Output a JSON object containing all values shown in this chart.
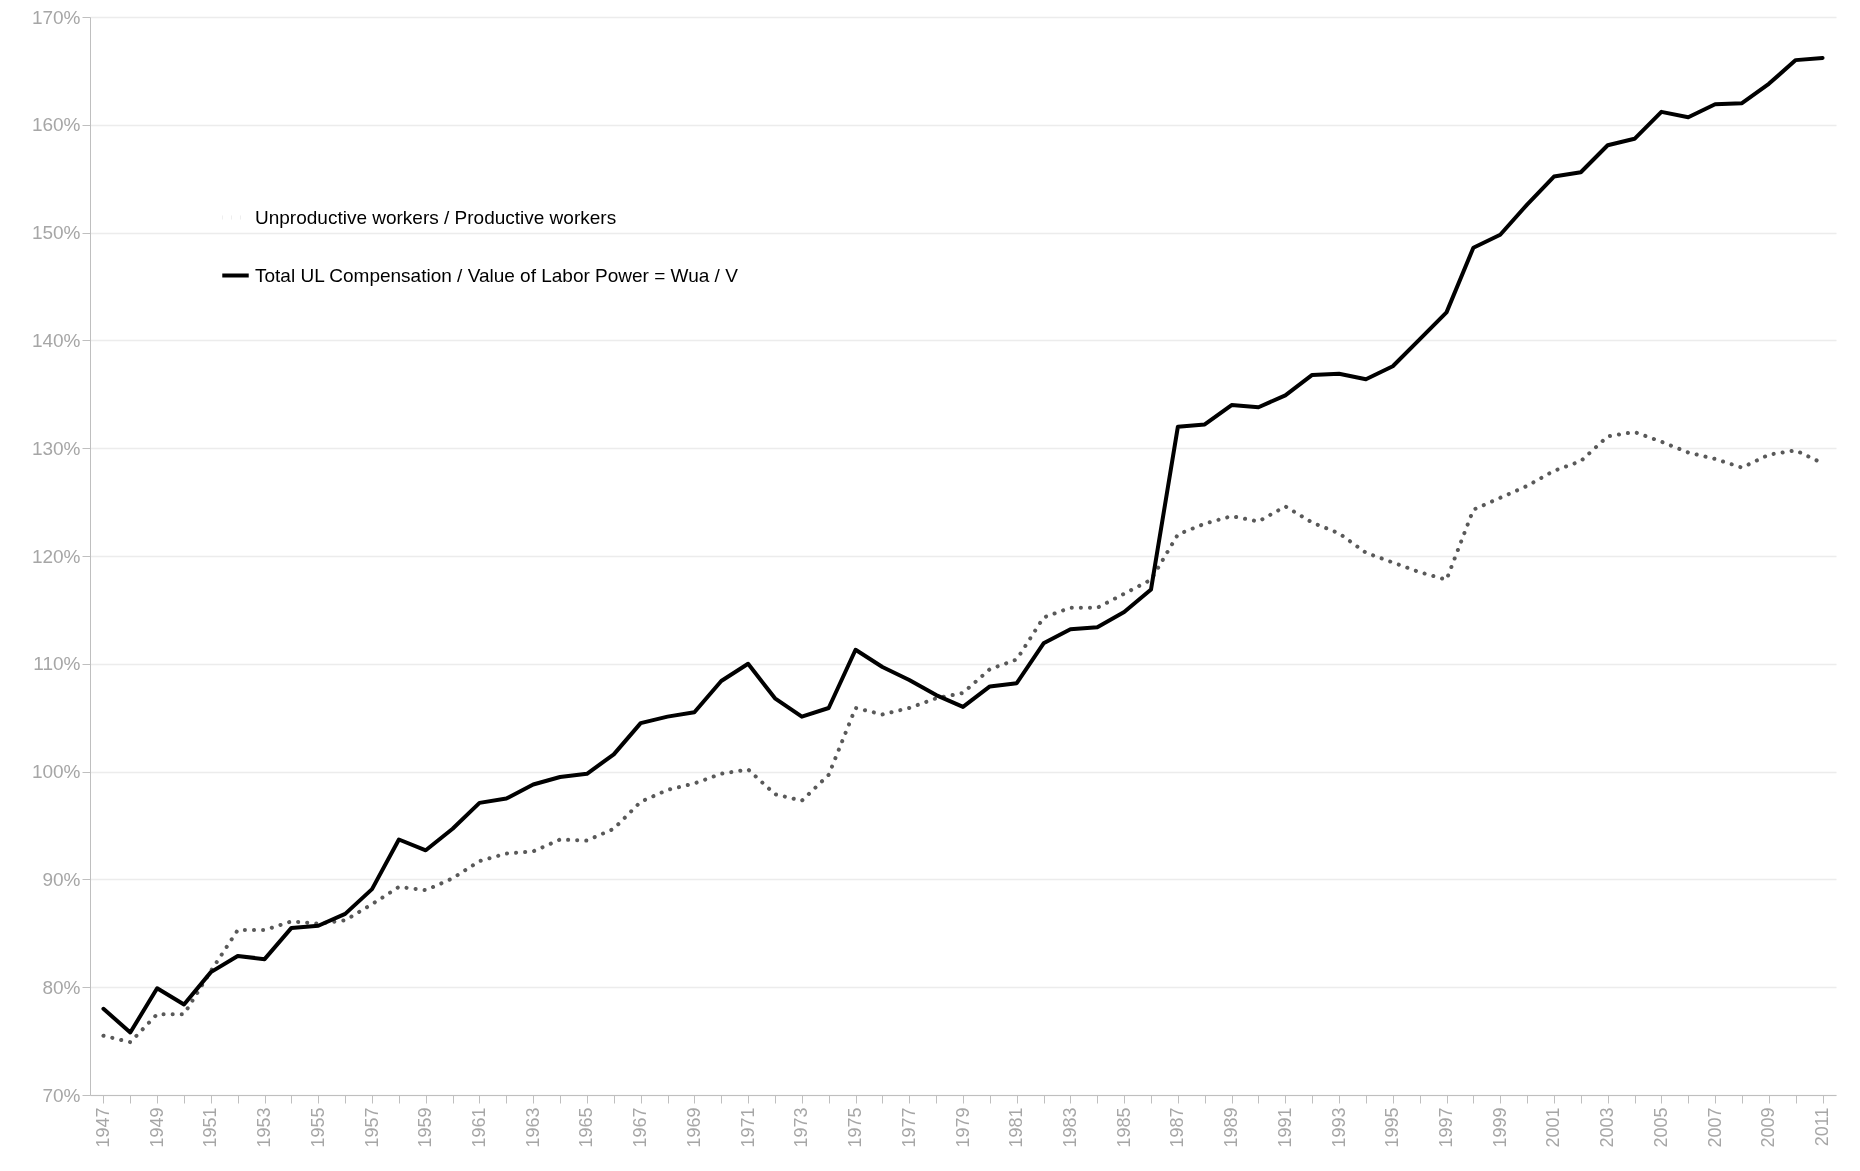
{
  "chart_data": {
    "type": "line",
    "categories": [
      "1947",
      null,
      "1949",
      null,
      "1951",
      null,
      "1953",
      null,
      "1955",
      null,
      "1957",
      null,
      "1959",
      null,
      "1961",
      null,
      "1963",
      null,
      "1965",
      null,
      "1967",
      null,
      "1969",
      null,
      "1971",
      null,
      "1973",
      null,
      "1975",
      null,
      "1977",
      null,
      "1979",
      null,
      "1981",
      null,
      "1983",
      null,
      "1985",
      null,
      "1987",
      null,
      "1989",
      null,
      "1991",
      null,
      "1993",
      null,
      "1995",
      null,
      "1997",
      null,
      "1999",
      null,
      "2001",
      null,
      "2003",
      null,
      "2005",
      null,
      "2007",
      null,
      "2009",
      null,
      "2011"
    ],
    "series": [
      {
        "name": "Unproductive workers / Productive workers",
        "color": "#595959",
        "line_style": "dotted",
        "values": [
          75.5,
          74.9,
          77.5,
          77.5,
          81.5,
          85.3,
          85.3,
          86.1,
          85.9,
          86.2,
          87.7,
          89.3,
          89.0,
          90.1,
          91.7,
          92.4,
          92.6,
          93.7,
          93.6,
          94.7,
          97.2,
          98.3,
          98.9,
          99.8,
          100.2,
          97.9,
          97.3,
          99.7,
          105.9,
          105.3,
          105.9,
          106.8,
          107.3,
          109.5,
          110.4,
          114.3,
          115.2,
          115.2,
          116.5,
          117.8,
          122.0,
          123.0,
          123.7,
          123.2,
          124.6,
          123.1,
          122.1,
          120.3,
          119.4,
          118.5,
          117.8,
          124.3,
          125.4,
          126.5,
          127.9,
          128.8,
          131.1,
          131.5,
          130.6,
          129.6,
          129.0,
          128.2,
          129.4,
          129.8,
          128.6
        ]
      },
      {
        "name": "Total UL Compensation / Value of Labor Power = Wua / V",
        "color": "#000000",
        "line_style": "solid",
        "values": [
          78.0,
          75.8,
          79.9,
          78.4,
          81.4,
          82.9,
          82.6,
          85.5,
          85.7,
          86.8,
          89.1,
          93.7,
          92.7,
          94.7,
          97.1,
          97.5,
          98.8,
          99.5,
          99.8,
          101.6,
          104.5,
          105.1,
          105.5,
          108.4,
          110.0,
          106.8,
          105.1,
          105.9,
          111.3,
          109.7,
          108.5,
          107.1,
          106.0,
          107.9,
          108.2,
          111.9,
          113.2,
          113.4,
          114.8,
          116.9,
          132.0,
          132.2,
          134.0,
          133.8,
          134.9,
          136.8,
          136.9,
          136.4,
          137.6,
          140.1,
          142.6,
          148.6,
          149.8,
          152.6,
          155.2,
          155.6,
          158.1,
          158.7,
          161.2,
          160.7,
          161.9,
          162.0,
          163.8,
          166.0,
          166.2
        ]
      }
    ],
    "ylim": [
      70,
      170
    ],
    "yticks": [
      {
        "value": 70,
        "label": "70%"
      },
      {
        "value": 80,
        "label": "80%"
      },
      {
        "value": 90,
        "label": "90%"
      },
      {
        "value": 100,
        "label": "100%"
      },
      {
        "value": 110,
        "label": "110%"
      },
      {
        "value": 120,
        "label": "120%"
      },
      {
        "value": 130,
        "label": "130%"
      },
      {
        "value": 140,
        "label": "140%"
      },
      {
        "value": 150,
        "label": "150%"
      },
      {
        "value": 160,
        "label": "160%"
      },
      {
        "value": 170,
        "label": "170%"
      }
    ],
    "grid": "y",
    "legend": "top left"
  }
}
